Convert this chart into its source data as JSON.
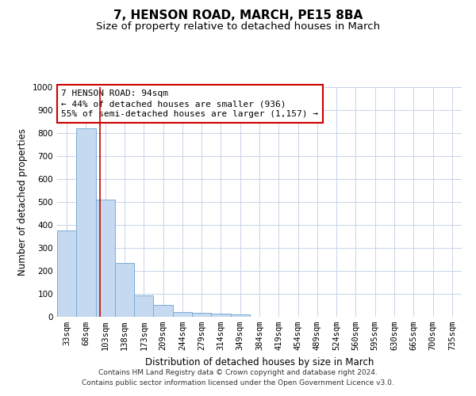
{
  "title": "7, HENSON ROAD, MARCH, PE15 8BA",
  "subtitle": "Size of property relative to detached houses in March",
  "xlabel": "Distribution of detached houses by size in March",
  "ylabel": "Number of detached properties",
  "bar_color": "#c5d9f0",
  "bar_edge_color": "#7badd4",
  "background_color": "#ffffff",
  "grid_color": "#c8d4e8",
  "categories": [
    "33sqm",
    "68sqm",
    "103sqm",
    "138sqm",
    "173sqm",
    "209sqm",
    "244sqm",
    "279sqm",
    "314sqm",
    "349sqm",
    "384sqm",
    "419sqm",
    "454sqm",
    "489sqm",
    "524sqm",
    "560sqm",
    "595sqm",
    "630sqm",
    "665sqm",
    "700sqm",
    "735sqm"
  ],
  "values": [
    375,
    820,
    510,
    235,
    92,
    52,
    20,
    18,
    15,
    10,
    0,
    0,
    0,
    0,
    0,
    0,
    0,
    0,
    0,
    0,
    0
  ],
  "ylim": [
    0,
    1000
  ],
  "yticks": [
    0,
    100,
    200,
    300,
    400,
    500,
    600,
    700,
    800,
    900,
    1000
  ],
  "vline_x": 1.74,
  "vline_color": "#cc0000",
  "annotation_box_text": "7 HENSON ROAD: 94sqm\n← 44% of detached houses are smaller (936)\n55% of semi-detached houses are larger (1,157) →",
  "annotation_box_color": "#cc0000",
  "annotation_box_fill": "#ffffff",
  "footer_line1": "Contains HM Land Registry data © Crown copyright and database right 2024.",
  "footer_line2": "Contains public sector information licensed under the Open Government Licence v3.0.",
  "title_fontsize": 11,
  "subtitle_fontsize": 9.5,
  "axis_label_fontsize": 8.5,
  "tick_fontsize": 7.5,
  "annotation_fontsize": 8,
  "footer_fontsize": 6.5
}
